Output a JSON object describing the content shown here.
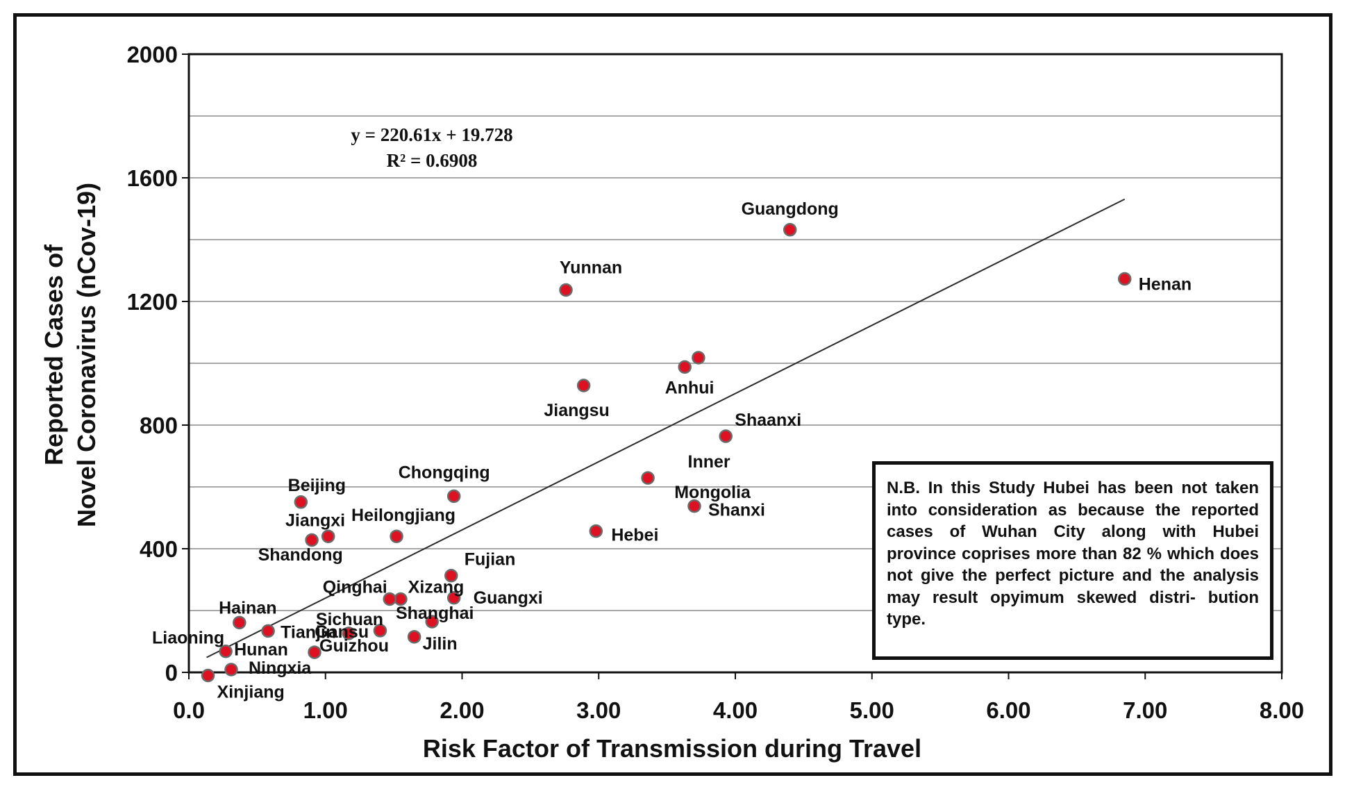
{
  "chart_data": {
    "type": "scatter",
    "xlabel": "Risk Factor of Transmission during Travel",
    "ylabel": [
      "Reported Cases of",
      "Novel Coronavirus (nCov-19)"
    ],
    "xlim": [
      0,
      8
    ],
    "ylim": [
      0,
      2000
    ],
    "x_ticks": [
      "0.0",
      "1.00",
      "2.00",
      "3.00",
      "4.00",
      "5.00",
      "6.00",
      "7.00",
      "8.00"
    ],
    "y_ticks": [
      "0",
      "400",
      "800",
      "1200",
      "1600",
      "2000"
    ],
    "grid": "horizontal",
    "point_color": "#dd1122",
    "trendline": {
      "slope": 220.61,
      "intercept": 19.728,
      "x_range": [
        0.13,
        6.85
      ],
      "equation": "y = 220.61x + 19.728",
      "r_squared": "R² = 0.6908"
    },
    "points": [
      {
        "name": "Guangdong",
        "x": 4.4,
        "y": 1432
      },
      {
        "name": "Henan",
        "x": 6.85,
        "y": 1273
      },
      {
        "name": "Yunnan",
        "x": 2.76,
        "y": 1237
      },
      {
        "name": "",
        "x": 3.73,
        "y": 1018
      },
      {
        "name": "Anhui",
        "x": 3.63,
        "y": 988
      },
      {
        "name": "Jiangsu",
        "x": 2.89,
        "y": 928
      },
      {
        "name": "Shaanxi",
        "x": 3.93,
        "y": 764
      },
      {
        "name": "Inner Mongolia",
        "x": 3.36,
        "y": 629
      },
      {
        "name": "Chongqing",
        "x": 1.94,
        "y": 570
      },
      {
        "name": "Beijing",
        "x": 0.82,
        "y": 551
      },
      {
        "name": "Shanxi",
        "x": 3.7,
        "y": 538
      },
      {
        "name": "Hebei",
        "x": 2.98,
        "y": 457
      },
      {
        "name": "Heilongjiang",
        "x": 1.52,
        "y": 440
      },
      {
        "name": "",
        "x": 1.02,
        "y": 440
      },
      {
        "name": "Jiangxi",
        "x": 0.9,
        "y": 428
      },
      {
        "name": "Fujian",
        "x": 1.92,
        "y": 313
      },
      {
        "name": "Xizang",
        "x": 1.55,
        "y": 237
      },
      {
        "name": "Qinghai",
        "x": 1.47,
        "y": 237
      },
      {
        "name": "Guangxi",
        "x": 1.94,
        "y": 241
      },
      {
        "name": "Shanghai",
        "x": 1.78,
        "y": 164
      },
      {
        "name": "Hainan",
        "x": 0.37,
        "y": 161
      },
      {
        "name": "Tianjin",
        "x": 0.58,
        "y": 134
      },
      {
        "name": "Sichuan",
        "x": 1.4,
        "y": 135
      },
      {
        "name": "Gansu",
        "x": 1.17,
        "y": 126
      },
      {
        "name": "Jilin",
        "x": 1.65,
        "y": 115
      },
      {
        "name": "Hunan",
        "x": 0.27,
        "y": 68
      },
      {
        "name": "Guizhou",
        "x": 0.92,
        "y": 65
      },
      {
        "name": "Ningxia",
        "x": 0.31,
        "y": 9
      },
      {
        "name": "Xinjiang",
        "x": 0.14,
        "y": -10
      }
    ],
    "labels": [
      {
        "text": "Guangdong",
        "x": 4.4,
        "y": 1432
      },
      {
        "text": "Henan",
        "x": 6.85,
        "y": 1273
      },
      {
        "text": "Yunnan",
        "x": 2.76,
        "y": 1237
      },
      {
        "text": "Anhui",
        "x": 3.68,
        "y": 1003
      },
      {
        "text": "Jiangsu",
        "x": 2.89,
        "y": 928
      },
      {
        "text": "Shaanxi",
        "x": 3.93,
        "y": 764
      },
      {
        "text": "Inner",
        "x": 3.36,
        "y": 629
      },
      {
        "text": "Mongolia",
        "x": 3.36,
        "y": 629
      },
      {
        "text": "Chongqing",
        "x": 1.94,
        "y": 570
      },
      {
        "text": "Beijing",
        "x": 0.82,
        "y": 551
      },
      {
        "text": "Shanxi",
        "x": 3.7,
        "y": 538
      },
      {
        "text": "Hebei",
        "x": 2.98,
        "y": 457
      },
      {
        "text": "Heilongjiang",
        "x": 1.52,
        "y": 440
      },
      {
        "text": "Jiangxi",
        "x": 0.9,
        "y": 428
      },
      {
        "text": "Shandong",
        "x": 1.02,
        "y": 440
      },
      {
        "text": "Fujian",
        "x": 1.92,
        "y": 313
      },
      {
        "text": "Qinghai",
        "x": 1.47,
        "y": 237
      },
      {
        "text": "Xizang",
        "x": 1.55,
        "y": 237
      },
      {
        "text": "Guangxi",
        "x": 1.94,
        "y": 241
      },
      {
        "text": "Shanghai",
        "x": 1.78,
        "y": 164
      },
      {
        "text": "Hainan",
        "x": 0.37,
        "y": 161
      },
      {
        "text": "Gansu",
        "x": 1.17,
        "y": 126
      },
      {
        "text": "Tianjin",
        "x": 0.58,
        "y": 134
      },
      {
        "text": "Sichuan",
        "x": 1.4,
        "y": 135
      },
      {
        "text": "Liaoning",
        "x": 0.27,
        "y": 68
      },
      {
        "text": "Hunan",
        "x": 0.27,
        "y": 68
      },
      {
        "text": "Guizhou",
        "x": 0.92,
        "y": 65
      },
      {
        "text": "Jilin",
        "x": 1.65,
        "y": 115
      },
      {
        "text": "Ningxia",
        "x": 0.31,
        "y": 9
      },
      {
        "text": "Xinjiang",
        "x": 0.14,
        "y": -10
      }
    ]
  },
  "note": "N.B. In this Study Hubei has been not taken into consideration as because the reported cases of Wuhan City along with Hubei province coprises more than 82 % which does not give the perfect picture and the analysis may result opyimum skewed distri- bution type."
}
